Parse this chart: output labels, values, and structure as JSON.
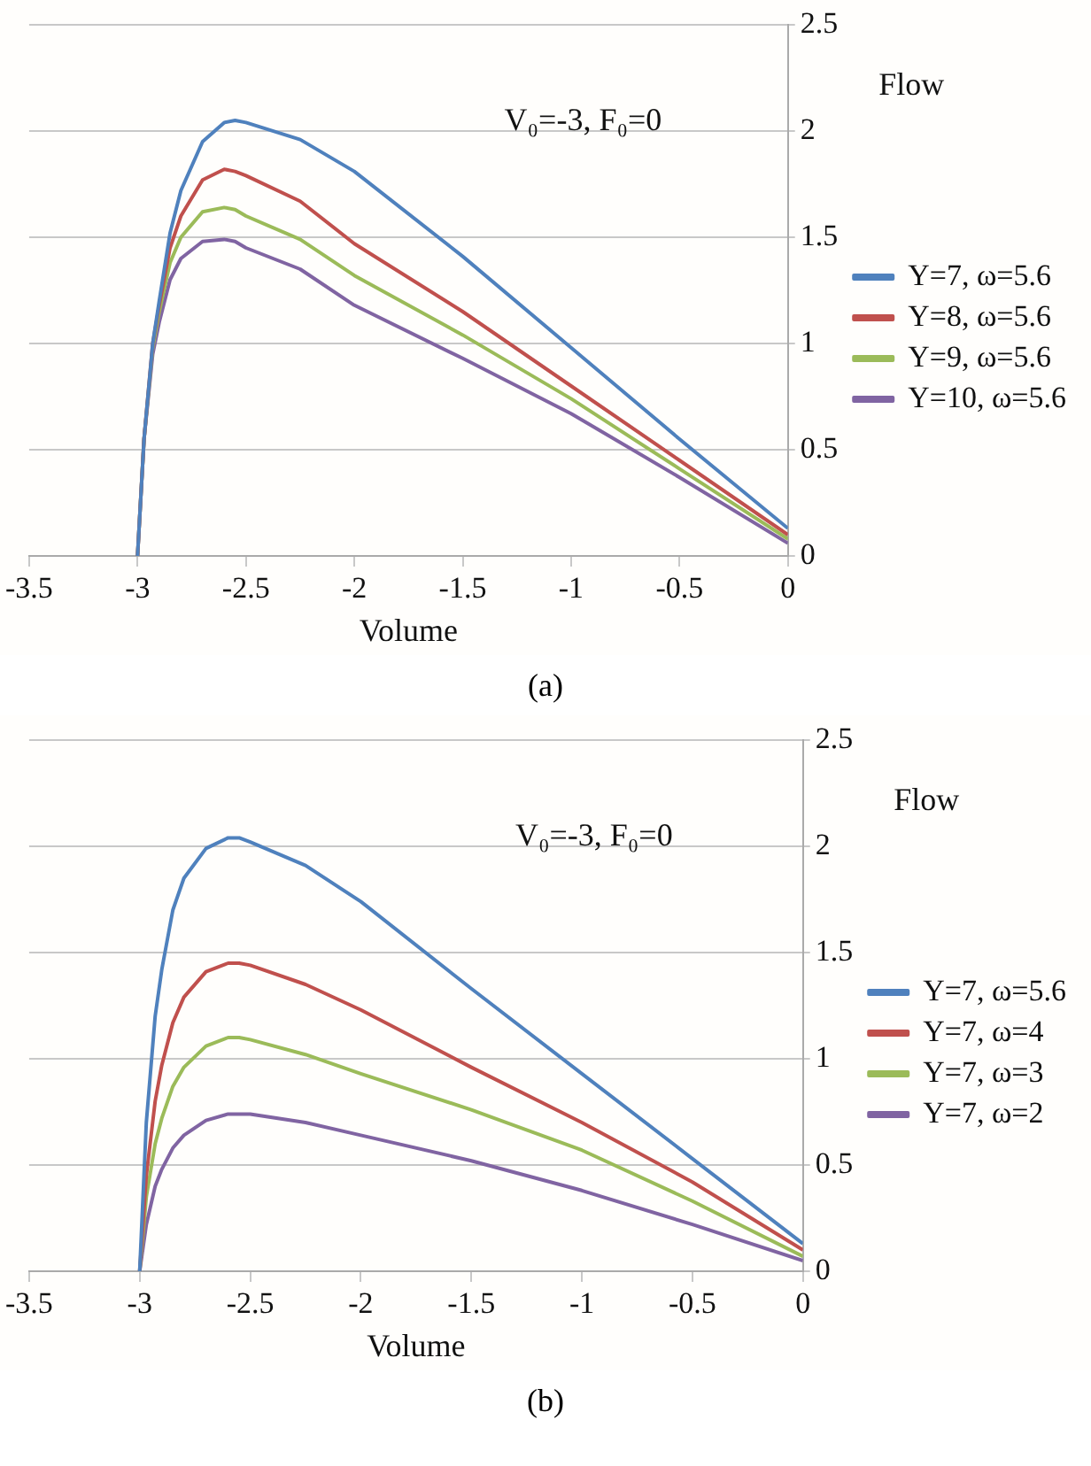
{
  "chart_data": [
    {
      "type": "line",
      "xlabel": "Volume",
      "ylabel": "Flow",
      "annotations": [
        "V₀=-3, F₀=0",
        "(a)"
      ],
      "x": [
        -3,
        -2.97,
        -2.93,
        -2.9,
        -2.85,
        -2.8,
        -2.7,
        -2.6,
        -2.55,
        -2.5,
        -2.25,
        -2,
        -1.5,
        -1,
        -0.5,
        0
      ],
      "series": [
        {
          "name": "Y=7, ω=5.6",
          "color": "#4f81bd",
          "values": [
            0,
            0.55,
            1.0,
            1.2,
            1.52,
            1.72,
            1.95,
            2.04,
            2.05,
            2.04,
            1.96,
            1.81,
            1.41,
            0.98,
            0.55,
            0.13
          ]
        },
        {
          "name": "Y=8, ω=5.6",
          "color": "#c0504d",
          "values": [
            0,
            0.55,
            1.0,
            1.18,
            1.45,
            1.6,
            1.77,
            1.82,
            1.81,
            1.79,
            1.67,
            1.47,
            1.15,
            0.8,
            0.45,
            0.1
          ]
        },
        {
          "name": "Y=9, ω=5.6",
          "color": "#9bbb59",
          "values": [
            0,
            0.55,
            0.98,
            1.15,
            1.38,
            1.5,
            1.62,
            1.64,
            1.63,
            1.6,
            1.49,
            1.32,
            1.04,
            0.74,
            0.41,
            0.08
          ]
        },
        {
          "name": "Y=10, ω=5.6",
          "color": "#8064a2",
          "values": [
            0,
            0.55,
            0.95,
            1.1,
            1.3,
            1.4,
            1.48,
            1.49,
            1.48,
            1.45,
            1.35,
            1.18,
            0.93,
            0.67,
            0.37,
            0.06
          ]
        }
      ],
      "xlim": [
        -3.5,
        0
      ],
      "xticks": [
        -3.5,
        -3,
        -2.5,
        -2,
        -1.5,
        -1,
        -0.5,
        0
      ],
      "ylim": [
        0,
        2.5
      ],
      "yticks": [
        0,
        0.5,
        1,
        1.5,
        2,
        2.5
      ],
      "grid": "y",
      "legend": "right",
      "marker": "none"
    },
    {
      "type": "line",
      "xlabel": "Volume",
      "ylabel": "Flow",
      "annotations": [
        "V₀=-3, F₀=0",
        "(b)"
      ],
      "x": [
        -3,
        -2.97,
        -2.93,
        -2.9,
        -2.85,
        -2.8,
        -2.7,
        -2.6,
        -2.55,
        -2.5,
        -2.25,
        -2,
        -1.5,
        -1,
        -0.5,
        0
      ],
      "series": [
        {
          "name": "Y=7, ω=5.6",
          "color": "#4f81bd",
          "values": [
            0,
            0.7,
            1.2,
            1.42,
            1.7,
            1.85,
            1.99,
            2.04,
            2.04,
            2.02,
            1.91,
            1.74,
            1.33,
            0.93,
            0.53,
            0.13
          ]
        },
        {
          "name": "Y=7, ω=4",
          "color": "#c0504d",
          "values": [
            0,
            0.45,
            0.8,
            0.97,
            1.17,
            1.29,
            1.41,
            1.45,
            1.45,
            1.44,
            1.35,
            1.23,
            0.96,
            0.7,
            0.42,
            0.1
          ]
        },
        {
          "name": "Y=7, ω=3",
          "color": "#9bbb59",
          "values": [
            0,
            0.35,
            0.6,
            0.72,
            0.87,
            0.96,
            1.06,
            1.1,
            1.1,
            1.09,
            1.02,
            0.93,
            0.76,
            0.57,
            0.33,
            0.07
          ]
        },
        {
          "name": "Y=7, ω=2",
          "color": "#8064a2",
          "values": [
            0,
            0.22,
            0.4,
            0.48,
            0.58,
            0.64,
            0.71,
            0.74,
            0.74,
            0.74,
            0.7,
            0.64,
            0.52,
            0.38,
            0.22,
            0.05
          ]
        }
      ],
      "xlim": [
        -3.5,
        0
      ],
      "xticks": [
        -3.5,
        -3,
        -2.5,
        -2,
        -1.5,
        -1,
        -0.5,
        0
      ],
      "ylim": [
        0,
        2.5
      ],
      "yticks": [
        0,
        0.5,
        1,
        1.5,
        2,
        2.5
      ],
      "grid": "y",
      "legend": "right",
      "marker": "none"
    }
  ]
}
